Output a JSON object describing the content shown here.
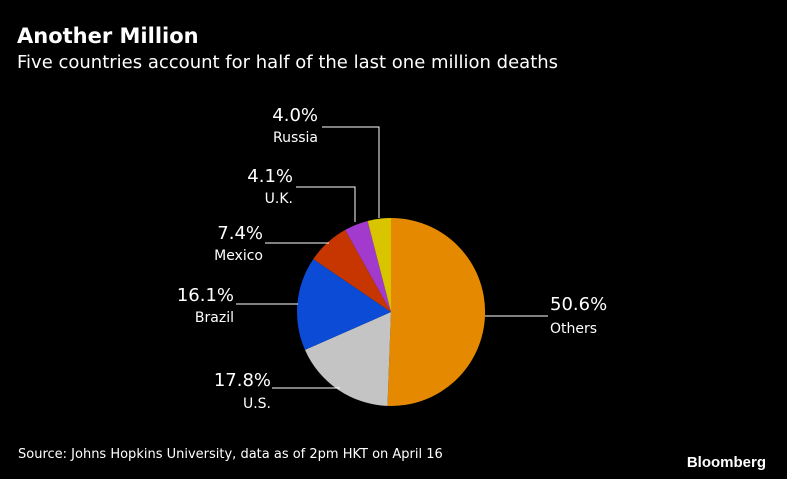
{
  "chart_data": {
    "type": "pie",
    "title": "Another Million",
    "subtitle": "Five countries account for half of the last one million deaths",
    "slices": [
      {
        "name": "Others",
        "value": 50.6,
        "label": "50.6%",
        "color": "#e58a00"
      },
      {
        "name": "U.S.",
        "value": 17.8,
        "label": "17.8%",
        "color": "#c4c4c4"
      },
      {
        "name": "Brazil",
        "value": 16.1,
        "label": "16.1%",
        "color": "#0b4bd6"
      },
      {
        "name": "Mexico",
        "value": 7.4,
        "label": "7.4%",
        "color": "#c73600"
      },
      {
        "name": "U.K.",
        "value": 4.1,
        "label": "4.1%",
        "color": "#a23bcd"
      },
      {
        "name": "Russia",
        "value": 4.0,
        "label": "4.0%",
        "color": "#d9c400"
      }
    ]
  },
  "footer": {
    "source": "Source: Johns Hopkins University, data as of 2pm HKT on April 16",
    "brand": "Bloomberg"
  }
}
